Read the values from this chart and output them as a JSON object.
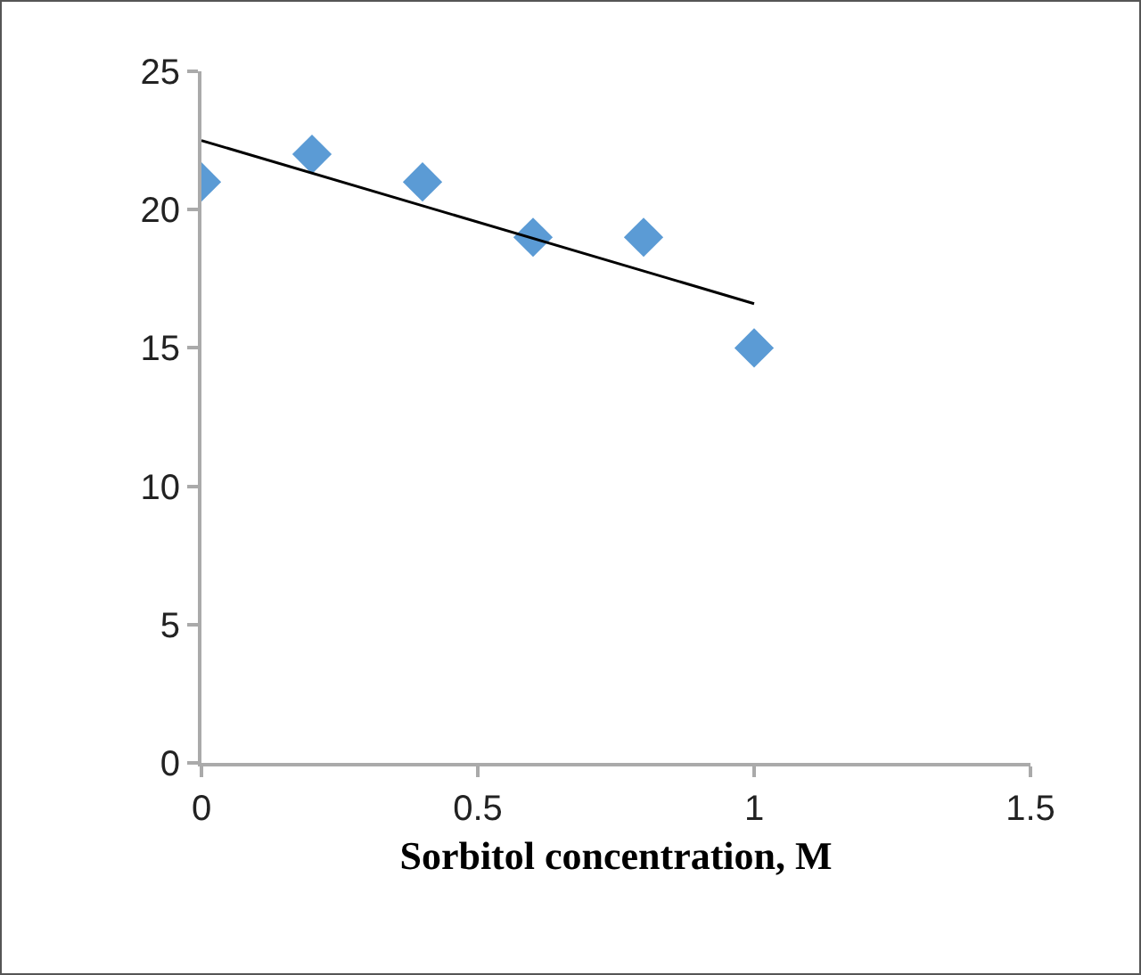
{
  "chart_data": {
    "type": "scatter",
    "xlabel": "Sorbitol concentration, M",
    "x": [
      0,
      0.2,
      0.4,
      0.6,
      0.8,
      1
    ],
    "series": [
      {
        "color": "#5b9bd5",
        "marker": "diamond",
        "values": [
          21,
          22,
          21,
          19,
          19,
          15
        ]
      },
      {
        "type": "line",
        "color": "#000000",
        "x": [
          0,
          1
        ],
        "values": [
          22.5,
          16.6
        ]
      }
    ],
    "xlim": [
      0,
      1.5
    ],
    "xticks": [
      0,
      0.5,
      1,
      1.5
    ],
    "ylim": [
      0,
      25
    ],
    "yticks": [
      0,
      5,
      10,
      15,
      20,
      25
    ],
    "grid": false
  }
}
